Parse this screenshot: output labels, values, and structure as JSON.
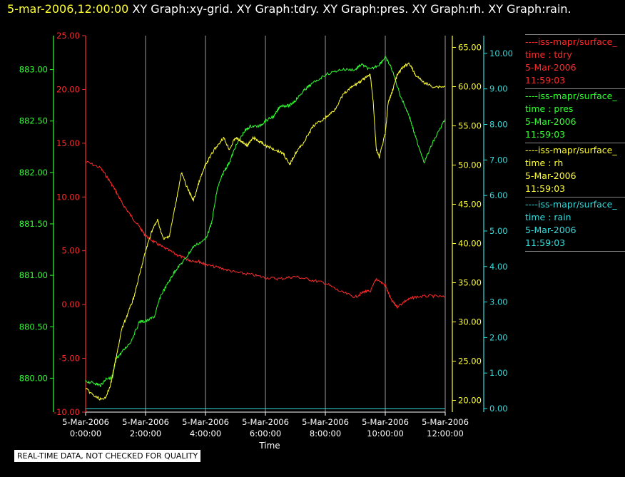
{
  "header": {
    "timestamp": "5-mar-2006,12:00:00",
    "graphs": [
      "XY Graph:xy-grid.",
      "XY Graph:tdry.",
      "XY Graph:pres.",
      "XY Graph:rh.",
      "XY Graph:rain."
    ]
  },
  "legend": [
    {
      "name": "----iss-mapr/surface_",
      "field": "time : tdry",
      "date": "5-Mar-2006",
      "time": "11:59:03",
      "color": "#ff2a2a"
    },
    {
      "name": "----iss-mapr/surface_",
      "field": "time : pres",
      "date": "5-Mar-2006",
      "time": "11:59:03",
      "color": "#33ff33"
    },
    {
      "name": "----iss-mapr/surface_",
      "field": "time : rh",
      "date": "5-Mar-2006",
      "time": "11:59:03",
      "color": "#ffff33"
    },
    {
      "name": "----iss-mapr/surface_",
      "field": "time : rain",
      "date": "5-Mar-2006",
      "time": "11:59:03",
      "color": "#33dddd"
    }
  ],
  "footer_note": "REAL-TIME DATA, NOT CHECKED FOR QUALITY",
  "chart_data": {
    "type": "line",
    "xlabel": "Time",
    "x_ticks": [
      {
        "date": "5-Mar-2006",
        "time": "0:00:00",
        "hour": 0
      },
      {
        "date": "5-Mar-2006",
        "time": "2:00:00",
        "hour": 2
      },
      {
        "date": "5-Mar-2006",
        "time": "4:00:00",
        "hour": 4
      },
      {
        "date": "5-Mar-2006",
        "time": "6:00:00",
        "hour": 6
      },
      {
        "date": "5-Mar-2006",
        "time": "8:00:00",
        "hour": 8
      },
      {
        "date": "5-Mar-2006",
        "time": "10:00:00",
        "hour": 10
      },
      {
        "date": "5-Mar-2006",
        "time": "12:00:00",
        "hour": 12
      }
    ],
    "xlim": [
      0,
      12
    ],
    "grid": "vertical",
    "axes": [
      {
        "id": "pres",
        "side": "left",
        "color": "#33ff33",
        "ylim": [
          879.67,
          883.33
        ],
        "ticks": [
          "880.00",
          "880.50",
          "881.00",
          "881.50",
          "882.00",
          "882.50",
          "883.00"
        ]
      },
      {
        "id": "tdry",
        "side": "left",
        "color": "#ff2a2a",
        "ylim": [
          -10,
          25
        ],
        "ticks": [
          "-10.00",
          "-5.00",
          "0.00",
          "5.00",
          "10.00",
          "15.00",
          "20.00",
          "25.00"
        ]
      },
      {
        "id": "rh",
        "side": "right",
        "color": "#ffff33",
        "ylim": [
          18.5,
          66.5
        ],
        "ticks": [
          "20.00",
          "25.00",
          "30.00",
          "35.00",
          "40.00",
          "45.00",
          "50.00",
          "55.00",
          "60.00",
          "65.00"
        ]
      },
      {
        "id": "rain",
        "side": "right",
        "color": "#33dddd",
        "ylim": [
          -0.1,
          10.5
        ],
        "ticks": [
          "0.00",
          "1.00",
          "2.00",
          "3.00",
          "4.00",
          "5.00",
          "6.00",
          "7.00",
          "8.00",
          "9.00",
          "10.00"
        ]
      }
    ],
    "series": [
      {
        "name": "tdry",
        "axis": "tdry",
        "color": "#ff2a2a",
        "x": [
          0,
          0.5,
          0.8,
          1,
          1.2,
          1.5,
          1.8,
          2,
          2.3,
          2.6,
          3,
          3.3,
          3.5,
          3.8,
          4,
          4.5,
          5,
          5.5,
          6,
          6.5,
          7,
          7.5,
          8,
          8.5,
          9,
          9.3,
          9.5,
          9.7,
          10,
          10.2,
          10.4,
          10.7,
          11,
          11.5,
          12
        ],
        "y": [
          13.3,
          12.7,
          11.5,
          10.6,
          9.5,
          8.3,
          7.2,
          6.4,
          5.8,
          5.3,
          4.7,
          4.3,
          4.1,
          4.0,
          3.7,
          3.4,
          3.0,
          2.8,
          2.5,
          2.4,
          2.6,
          2.3,
          2.0,
          1.2,
          0.7,
          1.2,
          1.2,
          2.4,
          1.8,
          0.4,
          -0.2,
          0.4,
          0.7,
          0.8,
          0.7
        ]
      },
      {
        "name": "pres",
        "axis": "pres",
        "color": "#33ff33",
        "x": [
          0,
          0.3,
          0.5,
          0.7,
          0.9,
          1,
          1.2,
          1.5,
          1.8,
          2,
          2.3,
          2.5,
          2.8,
          3,
          3.3,
          3.6,
          4,
          4.2,
          4.4,
          4.6,
          4.8,
          5,
          5.3,
          5.5,
          5.8,
          6,
          6.3,
          6.5,
          6.8,
          7,
          7.3,
          7.5,
          8,
          8.5,
          9,
          9.2,
          9.5,
          9.8,
          10,
          10.2,
          10.5,
          10.8,
          11,
          11.3,
          11.6,
          12
        ],
        "y": [
          879.97,
          879.95,
          879.93,
          880.0,
          880.0,
          880.18,
          880.25,
          880.35,
          880.55,
          880.55,
          880.6,
          880.8,
          880.95,
          881.05,
          881.15,
          881.28,
          881.35,
          881.5,
          881.85,
          882.0,
          882.1,
          882.25,
          882.4,
          882.45,
          882.45,
          882.5,
          882.55,
          882.65,
          882.65,
          882.7,
          882.8,
          882.85,
          882.95,
          883.0,
          883.0,
          883.05,
          883.0,
          883.05,
          883.12,
          883.02,
          882.75,
          882.55,
          882.35,
          882.1,
          882.3,
          882.52
        ]
      },
      {
        "name": "rh",
        "axis": "rh",
        "color": "#ffff33",
        "x": [
          0,
          0.3,
          0.6,
          0.8,
          1,
          1.2,
          1.4,
          1.6,
          1.8,
          2,
          2.2,
          2.4,
          2.6,
          2.8,
          3,
          3.2,
          3.4,
          3.6,
          3.8,
          4,
          4.3,
          4.6,
          4.8,
          5,
          5.2,
          5.4,
          5.6,
          5.8,
          6,
          6.3,
          6.6,
          6.8,
          7,
          7.3,
          7.6,
          8,
          8.3,
          8.6,
          8.9,
          9.1,
          9.3,
          9.5,
          9.6,
          9.7,
          9.8,
          10,
          10.1,
          10.2,
          10.4,
          10.6,
          10.8,
          11,
          11.3,
          11.6,
          12
        ],
        "y": [
          21.5,
          20.5,
          20.0,
          21.5,
          25,
          29,
          31,
          33,
          36,
          39,
          41.5,
          43,
          40.5,
          41,
          45,
          49,
          47,
          45.5,
          48,
          50,
          52,
          53.5,
          52,
          53.5,
          53,
          52.5,
          53.5,
          53,
          52.5,
          52,
          51.5,
          50,
          51.5,
          53,
          55,
          56,
          57,
          59,
          60,
          60.5,
          61,
          61.5,
          58,
          52,
          51,
          54,
          58,
          59,
          61.5,
          62.5,
          63,
          61.5,
          60.5,
          60,
          60
        ]
      },
      {
        "name": "rain",
        "axis": "rain",
        "color": "#33dddd",
        "x": [
          0,
          12
        ],
        "y": [
          0.0,
          0.0
        ]
      }
    ]
  }
}
